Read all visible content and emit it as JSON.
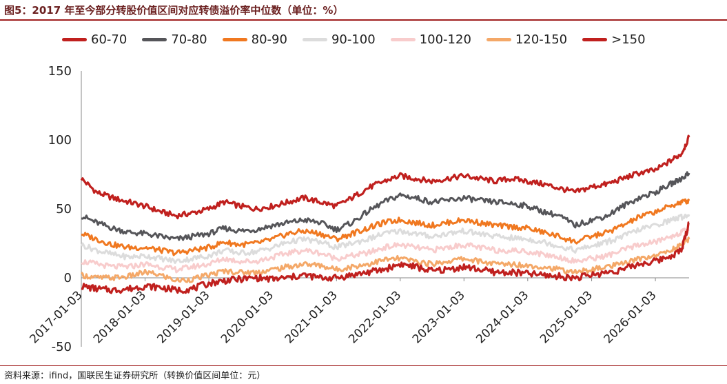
{
  "figure": {
    "title": "图5：2017 年至今部分转股价值区间对应转债溢价率中位数（单位：%）",
    "source": "资料来源：ifind，国联民生证券研究所（转换价值区间单位：元）"
  },
  "chart_data": {
    "type": "line",
    "title": "图5：2017 年至今部分转股价值区间对应转债溢价率中位数（单位：%）",
    "xlabel": "",
    "ylabel": "",
    "ylim": [
      -50,
      150
    ],
    "yticks": [
      "150",
      "100",
      "50",
      "0",
      "-50"
    ],
    "xlim": [
      "2017-01-03",
      "2026-07-15"
    ],
    "xticks": [
      "2017-01-03",
      "2018-01-03",
      "2019-01-03",
      "2020-01-03",
      "2021-01-03",
      "2022-01-03",
      "2023-01-03",
      "2024-01-03",
      "2025-01-03",
      "2026-01-03"
    ],
    "grid": false,
    "legend_position": "top",
    "x": [
      "2017-01-03",
      "2017-04-01",
      "2017-07-01",
      "2017-10-01",
      "2018-01-03",
      "2018-04-01",
      "2018-07-01",
      "2018-10-01",
      "2019-01-03",
      "2019-04-01",
      "2019-07-01",
      "2019-10-01",
      "2020-01-03",
      "2020-04-01",
      "2020-07-01",
      "2020-10-01",
      "2021-01-03",
      "2021-04-01",
      "2021-07-01",
      "2021-10-01",
      "2022-01-03",
      "2022-04-01",
      "2022-07-01",
      "2022-10-01",
      "2023-01-03",
      "2023-04-01",
      "2023-07-01",
      "2023-10-01",
      "2024-01-03",
      "2024-04-01",
      "2024-07-01",
      "2024-10-01",
      "2025-01-03",
      "2025-04-01",
      "2025-07-01",
      "2025-10-01",
      "2026-01-03",
      "2026-04-01",
      "2026-06-01",
      "2026-07-15"
    ],
    "series": [
      {
        "name": "60-70",
        "color": "#c0201e",
        "values": [
          72,
          62,
          58,
          55,
          52,
          48,
          45,
          47,
          50,
          55,
          52,
          50,
          52,
          55,
          58,
          55,
          52,
          58,
          65,
          70,
          74,
          72,
          70,
          72,
          74,
          72,
          70,
          72,
          70,
          68,
          65,
          62,
          66,
          68,
          72,
          76,
          78,
          85,
          90,
          102
        ]
      },
      {
        "name": "70-80",
        "color": "#555559",
        "values": [
          45,
          40,
          36,
          33,
          32,
          30,
          28,
          30,
          32,
          36,
          34,
          35,
          38,
          40,
          42,
          40,
          35,
          40,
          48,
          55,
          60,
          58,
          55,
          56,
          58,
          56,
          55,
          54,
          52,
          48,
          45,
          38,
          42,
          45,
          52,
          58,
          62,
          68,
          72,
          76
        ]
      },
      {
        "name": "80-90",
        "color": "#f07820",
        "values": [
          32,
          28,
          24,
          22,
          22,
          20,
          18,
          20,
          22,
          26,
          24,
          25,
          28,
          32,
          34,
          32,
          28,
          32,
          36,
          40,
          42,
          40,
          38,
          40,
          42,
          40,
          38,
          37,
          36,
          33,
          30,
          26,
          30,
          33,
          38,
          44,
          48,
          52,
          55,
          56
        ]
      },
      {
        "name": "90-100",
        "color": "#dcdcdc",
        "values": [
          24,
          20,
          17,
          15,
          16,
          14,
          12,
          14,
          16,
          20,
          18,
          19,
          22,
          26,
          28,
          26,
          22,
          25,
          28,
          32,
          34,
          32,
          30,
          32,
          34,
          32,
          30,
          29,
          28,
          26,
          23,
          20,
          23,
          26,
          30,
          35,
          38,
          42,
          44,
          46
        ]
      },
      {
        "name": "100-120",
        "color": "#f8cccc",
        "values": [
          12,
          10,
          8,
          8,
          10,
          8,
          6,
          8,
          10,
          14,
          12,
          12,
          15,
          18,
          20,
          18,
          14,
          16,
          18,
          22,
          24,
          22,
          20,
          22,
          24,
          22,
          20,
          20,
          19,
          17,
          15,
          12,
          14,
          16,
          20,
          24,
          26,
          30,
          33,
          35
        ]
      },
      {
        "name": "120-150",
        "color": "#f4a868",
        "values": [
          2,
          0,
          0,
          1,
          4,
          2,
          -2,
          -1,
          2,
          5,
          4,
          4,
          6,
          8,
          10,
          9,
          6,
          8,
          10,
          13,
          14,
          12,
          10,
          12,
          14,
          12,
          10,
          10,
          9,
          8,
          6,
          4,
          6,
          8,
          10,
          14,
          16,
          20,
          24,
          28
        ]
      },
      {
        "name": ">150",
        "color": "#c0201e",
        "values": [
          -6,
          -8,
          -9,
          -8,
          -6,
          -7,
          -9,
          -8,
          -4,
          -2,
          -1,
          0,
          -1,
          0,
          2,
          0,
          0,
          2,
          4,
          6,
          10,
          8,
          5,
          6,
          8,
          6,
          4,
          4,
          3,
          2,
          1,
          0,
          2,
          4,
          6,
          10,
          12,
          16,
          20,
          40
        ]
      }
    ]
  }
}
